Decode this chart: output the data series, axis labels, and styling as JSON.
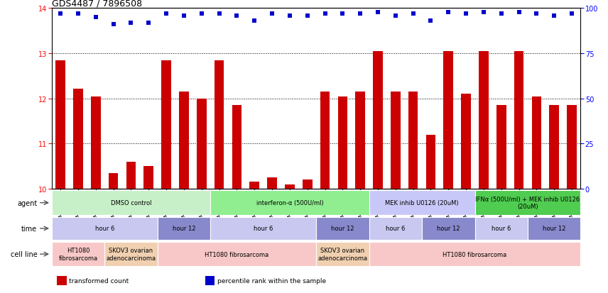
{
  "title": "GDS4487 / 7896508",
  "samples": [
    "GSM768611",
    "GSM768612",
    "GSM768613",
    "GSM768635",
    "GSM768636",
    "GSM768637",
    "GSM768614",
    "GSM768615",
    "GSM768616",
    "GSM768617",
    "GSM768618",
    "GSM768619",
    "GSM768638",
    "GSM768639",
    "GSM768640",
    "GSM768620",
    "GSM768621",
    "GSM768622",
    "GSM768623",
    "GSM768624",
    "GSM768625",
    "GSM768626",
    "GSM768627",
    "GSM768628",
    "GSM768629",
    "GSM768630",
    "GSM768631",
    "GSM768632",
    "GSM768633",
    "GSM768634"
  ],
  "bar_values": [
    12.85,
    12.22,
    12.05,
    10.35,
    10.6,
    10.5,
    12.85,
    12.15,
    12.0,
    12.85,
    11.85,
    10.15,
    10.25,
    10.1,
    10.2,
    12.15,
    12.05,
    12.15,
    13.05,
    12.15,
    12.15,
    11.2,
    13.05,
    12.1,
    13.05,
    11.85,
    13.05,
    12.05,
    11.85,
    11.85
  ],
  "percentile_values": [
    97,
    97,
    95,
    91,
    92,
    92,
    97,
    96,
    97,
    97,
    96,
    93,
    97,
    96,
    96,
    97,
    97,
    97,
    98,
    96,
    97,
    93,
    98,
    97,
    98,
    97,
    98,
    97,
    96,
    97
  ],
  "bar_color": "#cc0000",
  "dot_color": "#0000cc",
  "ylim_left": [
    10,
    14
  ],
  "yticks_left": [
    10,
    11,
    12,
    13,
    14
  ],
  "ylim_right": [
    0,
    100
  ],
  "yticks_right": [
    0,
    25,
    50,
    75,
    100
  ],
  "agent_labels": [
    {
      "text": "DMSO control",
      "start": 0,
      "end": 9,
      "color": "#c8f0c8"
    },
    {
      "text": "interferon-α (500U/ml)",
      "start": 9,
      "end": 18,
      "color": "#90ee90"
    },
    {
      "text": "MEK inhib U0126 (20uM)",
      "start": 18,
      "end": 24,
      "color": "#c8c8f8"
    },
    {
      "text": "IFNα (500U/ml) + MEK inhib U0126\n(20uM)",
      "start": 24,
      "end": 30,
      "color": "#50cc50"
    }
  ],
  "time_labels": [
    {
      "text": "hour 6",
      "start": 0,
      "end": 6,
      "color": "#c8c8f0"
    },
    {
      "text": "hour 12",
      "start": 6,
      "end": 9,
      "color": "#8888cc"
    },
    {
      "text": "hour 6",
      "start": 9,
      "end": 15,
      "color": "#c8c8f0"
    },
    {
      "text": "hour 12",
      "start": 15,
      "end": 18,
      "color": "#8888cc"
    },
    {
      "text": "hour 6",
      "start": 18,
      "end": 21,
      "color": "#c8c8f0"
    },
    {
      "text": "hour 12",
      "start": 21,
      "end": 24,
      "color": "#8888cc"
    },
    {
      "text": "hour 6",
      "start": 24,
      "end": 27,
      "color": "#c8c8f0"
    },
    {
      "text": "hour 12",
      "start": 27,
      "end": 30,
      "color": "#8888cc"
    }
  ],
  "cell_labels": [
    {
      "text": "HT1080\nfibrosarcoma",
      "start": 0,
      "end": 3,
      "color": "#f8c8c8"
    },
    {
      "text": "SKOV3 ovarian\nadenocarcinoma",
      "start": 3,
      "end": 6,
      "color": "#f0d0b0"
    },
    {
      "text": "HT1080 fibrosarcoma",
      "start": 6,
      "end": 15,
      "color": "#f8c8c8"
    },
    {
      "text": "SKOV3 ovarian\nadenocarcinoma",
      "start": 15,
      "end": 18,
      "color": "#f0d0b0"
    },
    {
      "text": "HT1080 fibrosarcoma",
      "start": 18,
      "end": 30,
      "color": "#f8c8c8"
    }
  ],
  "row_labels": [
    "agent",
    "time",
    "cell line"
  ],
  "legend": [
    {
      "color": "#cc0000",
      "label": "transformed count"
    },
    {
      "color": "#0000cc",
      "label": "percentile rank within the sample"
    }
  ],
  "figsize": [
    8.56,
    4.14
  ],
  "dpi": 100
}
